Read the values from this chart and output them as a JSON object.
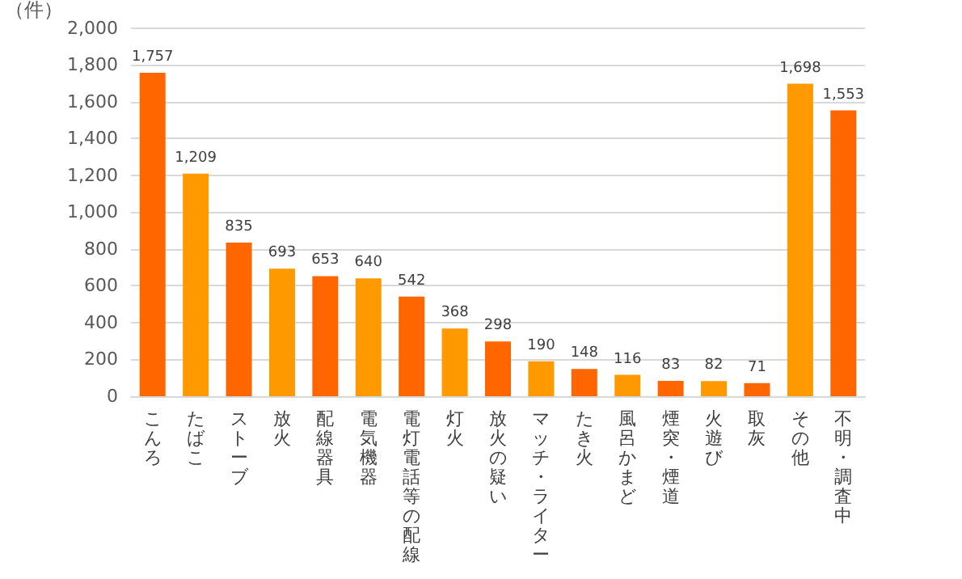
{
  "chart_data": {
    "type": "bar",
    "ylabel": "（件）",
    "categories": [
      "こんろ",
      "たばこ",
      "ストーブ",
      "放火",
      "配線器具",
      "電気機器",
      "電灯電話等の配線",
      "灯火",
      "放火の疑い",
      "マッチ・ライター",
      "たき火",
      "風呂かまど",
      "煙突・煙道",
      "火遊び",
      "取灰",
      "その他",
      "不明・調査中"
    ],
    "values": [
      1757,
      1209,
      835,
      693,
      653,
      640,
      542,
      368,
      298,
      190,
      148,
      116,
      83,
      82,
      71,
      1698,
      1553
    ],
    "colors": [
      "#ff6600",
      "#ff9900",
      "#ff6600",
      "#ff9900",
      "#ff6600",
      "#ff9900",
      "#ff6600",
      "#ff9900",
      "#ff6600",
      "#ff9900",
      "#ff6600",
      "#ff9900",
      "#ff6600",
      "#ff9900",
      "#ff6600",
      "#ff9900",
      "#ff6600"
    ],
    "value_labels": [
      "1,757",
      "1,209",
      "835",
      "693",
      "653",
      "640",
      "542",
      "368",
      "298",
      "190",
      "148",
      "116",
      "83",
      "82",
      "71",
      "1,698",
      "1,553"
    ],
    "ylim": [
      0,
      2000
    ],
    "yticks": [
      0,
      200,
      400,
      600,
      800,
      {
        "value": 1000,
        "label": "1,000"
      },
      {
        "value": 1200,
        "label": "1,200"
      },
      {
        "value": 1400,
        "label": "1,400"
      },
      {
        "value": 1600,
        "label": "1,600"
      },
      {
        "value": 1800,
        "label": "1,800"
      },
      {
        "value": 2000,
        "label": "2,000"
      }
    ],
    "grid": "y"
  }
}
